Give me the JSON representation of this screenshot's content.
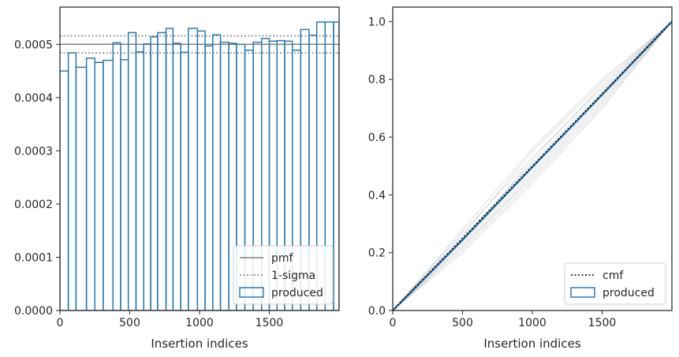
{
  "chart_data": [
    {
      "type": "step",
      "xlabel": "Insertion indices",
      "ylabel": "",
      "xlim": [
        0,
        2000
      ],
      "ylim": [
        0,
        0.00057
      ],
      "xticks": [
        0,
        500,
        1000,
        1500
      ],
      "xtick_labels": [
        "0",
        "500",
        "1000",
        "1500"
      ],
      "yticks": [
        0,
        0.0001,
        0.0002,
        0.0003,
        0.0004,
        0.0005
      ],
      "ytick_labels": [
        "0.0000",
        "0.0001",
        "0.0002",
        "0.0003",
        "0.0004",
        "0.0005"
      ],
      "grid": false,
      "legend_position": "lower-right",
      "reference_lines": [
        {
          "name": "pmf",
          "y": 0.0005,
          "style": "solid",
          "color": "#808080"
        },
        {
          "name": "1-sigma",
          "y": 0.000516,
          "style": "dotted",
          "color": "#808080"
        },
        {
          "name": "1-sigma",
          "y": 0.000484,
          "style": "dotted",
          "color": "#808080"
        }
      ],
      "histogram": {
        "name": "produced",
        "color": "#2b7bb0",
        "bin_edges": [
          0,
          60,
          115,
          190,
          250,
          310,
          380,
          435,
          490,
          545,
          600,
          650,
          700,
          760,
          810,
          865,
          920,
          985,
          1040,
          1095,
          1150,
          1210,
          1265,
          1325,
          1385,
          1445,
          1500,
          1555,
          1610,
          1665,
          1725,
          1785,
          1840,
          1900,
          1960,
          2000
        ],
        "values": [
          0.00045,
          0.000484,
          0.000457,
          0.000474,
          0.000466,
          0.00047,
          0.000503,
          0.000471,
          0.000522,
          0.000486,
          0.000501,
          0.000514,
          0.000522,
          0.00053,
          0.000502,
          0.000485,
          0.00053,
          0.000525,
          0.000497,
          0.000518,
          0.000504,
          0.000502,
          0.0005,
          0.000489,
          0.000504,
          0.000511,
          0.000506,
          0.000507,
          0.000506,
          0.000489,
          0.000528,
          0.000517,
          0.000542,
          0.000542,
          0.000542
        ]
      },
      "legend": [
        {
          "label": "pmf",
          "style": "solid",
          "color": "#808080"
        },
        {
          "label": "1-sigma",
          "style": "dotted",
          "color": "#808080"
        },
        {
          "label": "produced",
          "style": "box",
          "color": "#2b7bb0"
        }
      ]
    },
    {
      "type": "line",
      "xlabel": "Insertion indices",
      "ylabel": "",
      "xlim": [
        0,
        2000
      ],
      "ylim": [
        0,
        1.05
      ],
      "xticks": [
        0,
        500,
        1000,
        1500
      ],
      "xtick_labels": [
        "0",
        "500",
        "1000",
        "1500"
      ],
      "yticks": [
        0,
        0.2,
        0.4,
        0.6,
        0.8,
        1.0
      ],
      "ytick_labels": [
        "0.0",
        "0.2",
        "0.4",
        "0.6",
        "0.8",
        "1.0"
      ],
      "grid": false,
      "legend_position": "lower-right",
      "series": [
        {
          "name": "cmf",
          "style": "dotted",
          "color": "#000000",
          "x": [
            0,
            2000
          ],
          "y": [
            0,
            1
          ]
        },
        {
          "name": "produced",
          "style": "solid",
          "color": "#2b7bb0",
          "width": 2.5,
          "x": [
            0,
            500,
            1000,
            1500,
            2000
          ],
          "y": [
            0,
            0.244,
            0.496,
            0.747,
            1
          ]
        }
      ],
      "background_curves": {
        "color": "#c8c8cc",
        "curves": [
          {
            "x": [
              0,
              500,
              1000,
              1500,
              2000
            ],
            "y": [
              0,
              0.27,
              0.53,
              0.77,
              1
            ]
          },
          {
            "x": [
              0,
              500,
              1000,
              1500,
              2000
            ],
            "y": [
              0,
              0.22,
              0.46,
              0.72,
              1
            ]
          },
          {
            "x": [
              0,
              500,
              1000,
              1500,
              2000
            ],
            "y": [
              0,
              0.26,
              0.55,
              0.79,
              1
            ]
          },
          {
            "x": [
              0,
              500,
              1000,
              1500,
              2000
            ],
            "y": [
              0,
              0.21,
              0.45,
              0.71,
              1
            ]
          },
          {
            "x": [
              0,
              500,
              1000,
              1500,
              2000
            ],
            "y": [
              0,
              0.25,
              0.51,
              0.76,
              1
            ]
          },
          {
            "x": [
              0,
              500,
              1000,
              1500,
              2000
            ],
            "y": [
              0,
              0.23,
              0.48,
              0.74,
              1
            ]
          },
          {
            "x": [
              0,
              500,
              1000,
              1500,
              2000
            ],
            "y": [
              0,
              0.28,
              0.56,
              0.8,
              1
            ]
          },
          {
            "x": [
              0,
              500,
              1000,
              1500,
              2000
            ],
            "y": [
              0,
              0.2,
              0.44,
              0.7,
              1
            ]
          },
          {
            "x": [
              0,
              500,
              1000,
              1500,
              2000
            ],
            "y": [
              0,
              0.24,
              0.52,
              0.78,
              1
            ]
          },
          {
            "x": [
              0,
              500,
              1000,
              1500,
              2000
            ],
            "y": [
              0,
              0.22,
              0.47,
              0.73,
              1
            ]
          }
        ]
      },
      "legend": [
        {
          "label": "cmf",
          "style": "dotted",
          "color": "#000000"
        },
        {
          "label": "produced",
          "style": "box",
          "color": "#2b7bb0"
        }
      ]
    }
  ]
}
